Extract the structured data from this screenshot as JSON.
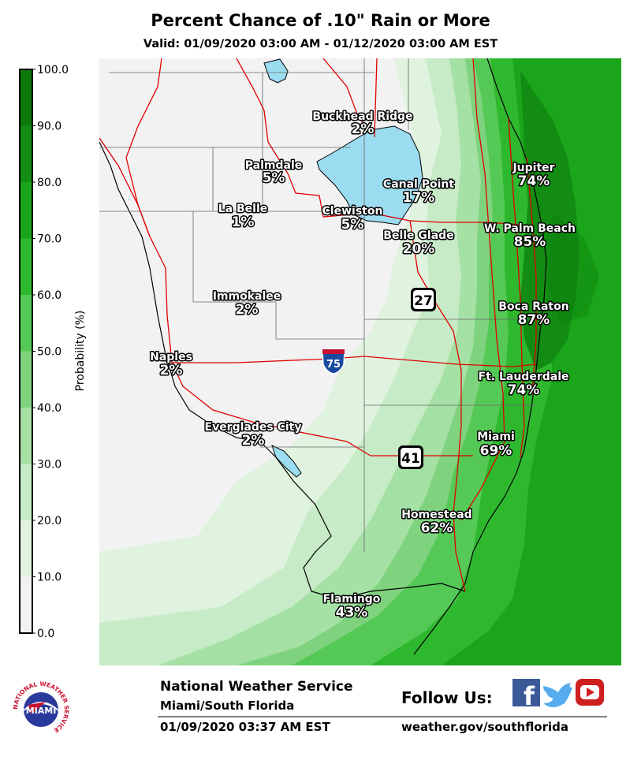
{
  "header": {
    "title": "Percent Chance of .10\" Rain or More",
    "valid": "Valid: 01/09/2020 03:00 AM - 01/12/2020 03:00 AM EST"
  },
  "legend": {
    "axis_label": "Probability (%)",
    "ticks": [
      "100.0",
      "90.0",
      "80.0",
      "70.0",
      "60.0",
      "50.0",
      "40.0",
      "30.0",
      "20.0",
      "10.0",
      "0.0"
    ],
    "colors": [
      "#0b7a0b",
      "#128c12",
      "#1aa51a",
      "#2eb82e",
      "#55c955",
      "#7fd37f",
      "#a5e0a5",
      "#c6ebc6",
      "#dff3df",
      "#f2f2f2"
    ]
  },
  "map": {
    "land_color": "#f2f2f2",
    "lake_color": "#9cdcf0",
    "road_color": "#e00000",
    "cities": [
      {
        "name": "Buckhead Ridge",
        "pct": "2%"
      },
      {
        "name": "Palmdale",
        "pct": "5%"
      },
      {
        "name": "Canal Point",
        "pct": "17%"
      },
      {
        "name": "Jupiter",
        "pct": "74%"
      },
      {
        "name": "La Belle",
        "pct": "1%"
      },
      {
        "name": "Clewiston",
        "pct": "5%"
      },
      {
        "name": "Belle Glade",
        "pct": "20%"
      },
      {
        "name": "W. Palm Beach",
        "pct": "85%"
      },
      {
        "name": "Immokalee",
        "pct": "2%"
      },
      {
        "name": "Boca Raton",
        "pct": "87%"
      },
      {
        "name": "Naples",
        "pct": "2%"
      },
      {
        "name": "Ft. Lauderdale",
        "pct": "74%"
      },
      {
        "name": "Everglades City",
        "pct": "2%"
      },
      {
        "name": "Miami",
        "pct": "69%"
      },
      {
        "name": "Homestead",
        "pct": "62%"
      },
      {
        "name": "Flamingo",
        "pct": "43%"
      }
    ],
    "shields": [
      "27",
      "75",
      "41"
    ]
  },
  "footer": {
    "org": "National Weather Service",
    "office": "Miami/South Florida",
    "timestamp": "01/09/2020 03:37 AM EST",
    "follow": "Follow Us:",
    "url": "weather.gov/southflorida",
    "logo_text": "MIAMI",
    "logo_ring": "NATIONAL WEATHER SERVICE"
  }
}
